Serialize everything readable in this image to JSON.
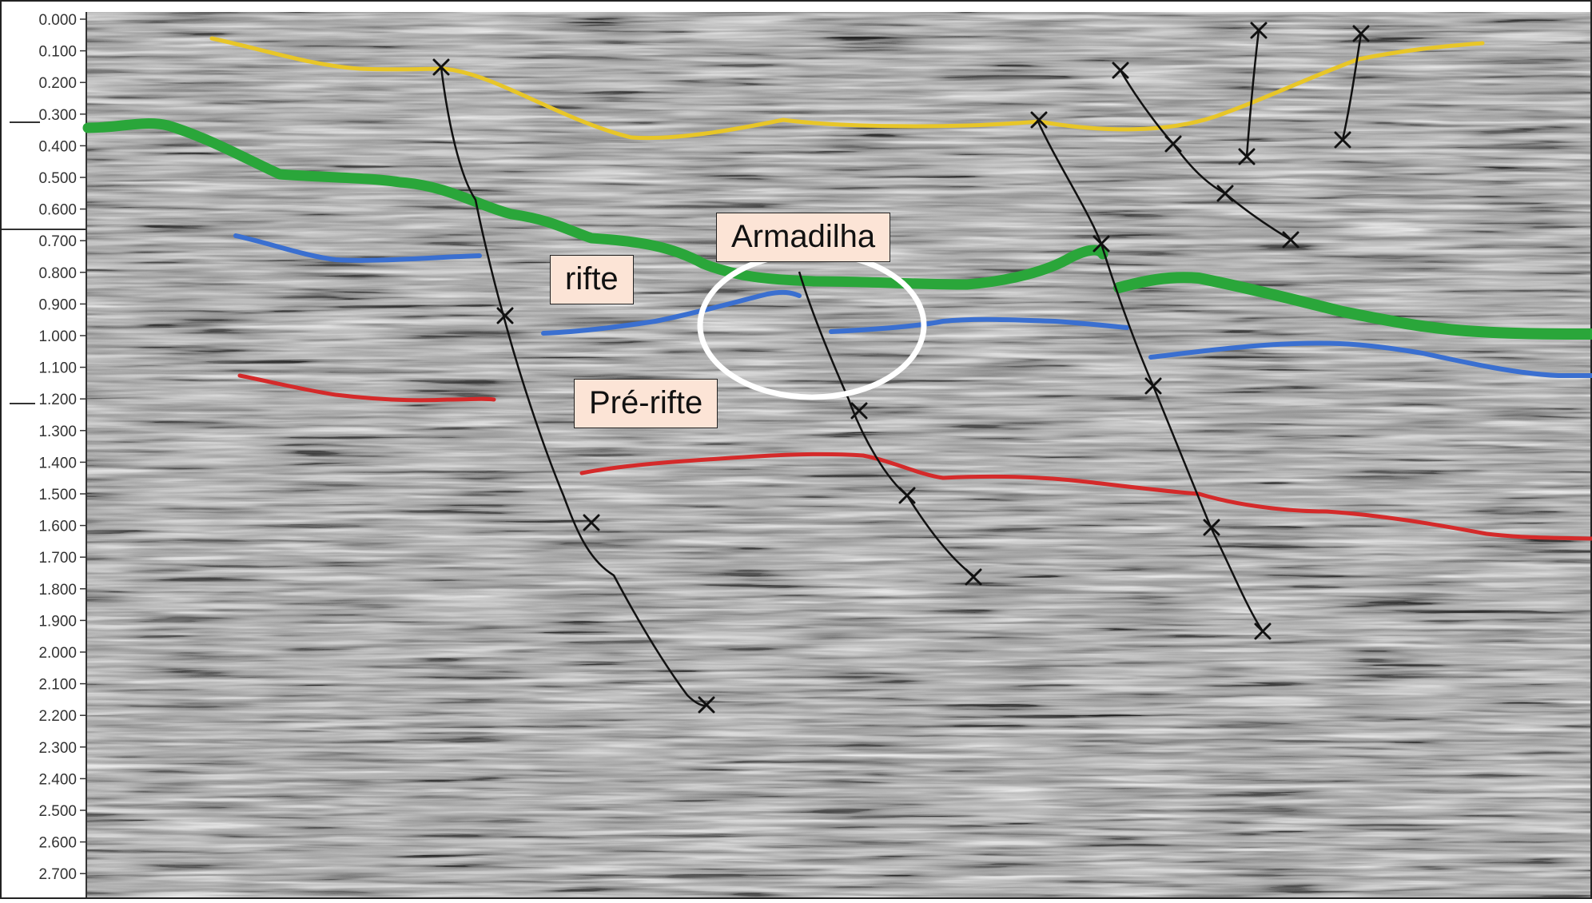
{
  "axis": {
    "time_ticks": [
      "0.000",
      "0.100",
      "0.200",
      "0.300",
      "0.400",
      "0.500",
      "0.600",
      "0.700",
      "0.800",
      "0.900",
      "1.000",
      "1.100",
      "1.200",
      "1.300",
      "1.400",
      "1.500",
      "1.600",
      "1.700",
      "1.800",
      "1.900",
      "2.000",
      "2.100",
      "2.200",
      "2.300",
      "2.400",
      "2.500",
      "2.600",
      "2.700"
    ]
  },
  "labels": {
    "trap": "Armadilha",
    "rift": "rifte",
    "pre_rift": "Pré-rifte"
  },
  "horizons": [
    {
      "name": "",
      "color": "#e8c628"
    },
    {
      "name": "",
      "color": "#2aa63a"
    },
    {
      "name": "",
      "color": "#3a6fd0"
    },
    {
      "name": "",
      "color": "#d42a2a"
    }
  ],
  "colors": {
    "background": "#9c9c9c",
    "fault": "#111111",
    "trap_circle": "#ffffff",
    "label_fill": "#fce4d6"
  },
  "icons": {
    "fault_marker": "x-mark-icon"
  }
}
